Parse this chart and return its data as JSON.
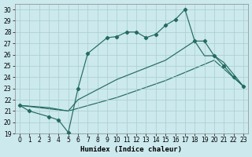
{
  "xlabel": "Humidex (Indice chaleur)",
  "background_color": "#cce9ed",
  "line_color": "#236b62",
  "xlim": [
    -0.5,
    23.5
  ],
  "ylim": [
    19,
    30.5
  ],
  "yticks": [
    19,
    20,
    21,
    22,
    23,
    24,
    25,
    26,
    27,
    28,
    29,
    30
  ],
  "xticks": [
    0,
    1,
    2,
    3,
    4,
    5,
    6,
    7,
    8,
    9,
    10,
    11,
    12,
    13,
    14,
    15,
    16,
    17,
    18,
    19,
    20,
    21,
    22,
    23
  ],
  "grid_color": "#a8cece",
  "line1_x": [
    0,
    1,
    3,
    4,
    5,
    6,
    7,
    9,
    10,
    11,
    12,
    13,
    14,
    15,
    16,
    17,
    18,
    19,
    20,
    21,
    22,
    23
  ],
  "line1_y": [
    21.5,
    21.0,
    20.5,
    20.2,
    19.1,
    23.0,
    26.1,
    27.5,
    27.6,
    28.0,
    28.0,
    27.5,
    27.8,
    28.6,
    29.1,
    30.0,
    27.2,
    27.2,
    25.9,
    25.0,
    24.0,
    23.2
  ],
  "line2_x": [
    0,
    3,
    5,
    6,
    10,
    15,
    18,
    19,
    20,
    21,
    23
  ],
  "line2_y": [
    21.5,
    21.3,
    21.0,
    22.0,
    23.8,
    25.5,
    27.2,
    25.9,
    25.9,
    25.3,
    23.2
  ],
  "line3_x": [
    0,
    5,
    10,
    15,
    20,
    23
  ],
  "line3_y": [
    21.5,
    21.0,
    22.2,
    23.7,
    25.5,
    23.2
  ]
}
